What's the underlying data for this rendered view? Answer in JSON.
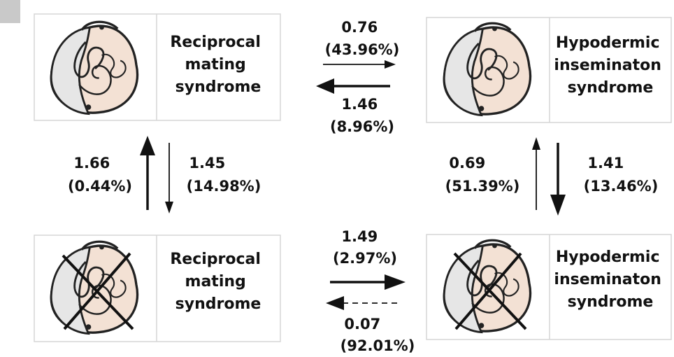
{
  "boxes": {
    "top_left": {
      "lines": [
        "Reciprocal",
        "mating",
        "syndrome"
      ]
    },
    "top_right": {
      "lines": [
        "Hypodermic",
        "inseminaton",
        "syndrome"
      ]
    },
    "bottom_left": {
      "lines": [
        "Reciprocal",
        "mating",
        "syndrome"
      ]
    },
    "bottom_right": {
      "lines": [
        "Hypodermic",
        "inseminaton",
        "syndrome"
      ]
    }
  },
  "transitions": {
    "top_forward": {
      "rate": "0.76",
      "percent": "(43.96%)"
    },
    "top_backward": {
      "rate": "1.46",
      "percent": "(8.96%)"
    },
    "left_up": {
      "rate": "1.66",
      "percent": "(0.44%)"
    },
    "left_down": {
      "rate": "1.45",
      "percent": "(14.98%)"
    },
    "right_up": {
      "rate": "0.69",
      "percent": "(51.39%)"
    },
    "right_down": {
      "rate": "1.41",
      "percent": "(13.46%)"
    },
    "bottom_forward": {
      "rate": "1.49",
      "percent": "(2.97%)"
    },
    "bottom_backward": {
      "rate": "0.07",
      "percent": "(92.01%)"
    }
  },
  "colors": {
    "arrow": "#111111",
    "shell_grey": "#e6e6e6",
    "body_pink": "#f3e1d4",
    "outline": "#222222"
  },
  "icons": {
    "slug_icon": "slug-with-genitalia-icon",
    "cross_icon": "cross-out-icon"
  }
}
